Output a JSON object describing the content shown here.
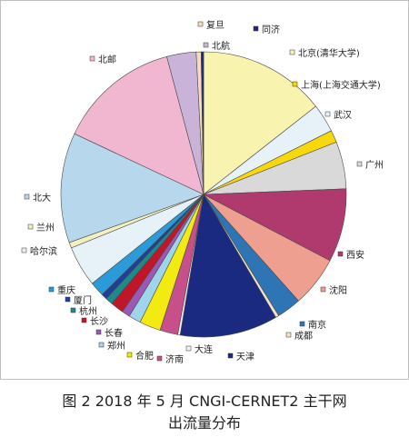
{
  "caption": {
    "line1": "图 2  2018 年 5 月 CNGI-CERNET2 主干网",
    "line2": "出流量分布"
  },
  "chart_data": {
    "type": "pie",
    "start_angle_deg": 0,
    "direction": "clockwise",
    "legend": "labels around pie",
    "slices": [
      {
        "name": "北京(清华大学)",
        "value": 15.6,
        "color": "#f8f4b0"
      },
      {
        "name": "武汉",
        "value": 3.5,
        "color": "#e6f1f8"
      },
      {
        "name": "上海(上海交通大学)",
        "value": 1.5,
        "color": "#f7d80d"
      },
      {
        "name": "广州",
        "value": 5.8,
        "color": "#d9d9d9"
      },
      {
        "name": "西安",
        "value": 9.0,
        "color": "#b03a6e"
      },
      {
        "name": "沈阳",
        "value": 6.2,
        "color": "#ef9f8f"
      },
      {
        "name": "南京",
        "value": 3.0,
        "color": "#2e75b6"
      },
      {
        "name": "成都",
        "value": 0.4,
        "color": "#f5e3c8"
      },
      {
        "name": "天津",
        "value": 12.0,
        "color": "#1a2a80"
      },
      {
        "name": "大连",
        "value": 0.3,
        "color": "#eef3f8"
      },
      {
        "name": "济南",
        "value": 2.2,
        "color": "#c8508a"
      },
      {
        "name": "合肥",
        "value": 2.6,
        "color": "#f2ea10"
      },
      {
        "name": "郑州",
        "value": 1.5,
        "color": "#9ed5ea"
      },
      {
        "name": "长春",
        "value": 1.0,
        "color": "#9b59b6"
      },
      {
        "name": "长沙",
        "value": 1.6,
        "color": "#c0162a"
      },
      {
        "name": "杭州",
        "value": 0.9,
        "color": "#1a8a8a"
      },
      {
        "name": "厦门",
        "value": 0.7,
        "color": "#1f3f99"
      },
      {
        "name": "重庆",
        "value": 1.8,
        "color": "#2a9ad8"
      },
      {
        "name": "哈尔滨",
        "value": 5.0,
        "color": "#e6f1f8"
      },
      {
        "name": "兰州",
        "value": 0.7,
        "color": "#f2f0c0"
      },
      {
        "name": "北大",
        "value": 13.5,
        "color": "#b7d7ec"
      },
      {
        "name": "北邮",
        "value": 15.0,
        "color": "#f1b6d0"
      },
      {
        "name": "北航",
        "value": 3.6,
        "color": "#c9b3d8"
      },
      {
        "name": "复旦",
        "value": 0.6,
        "color": "#f5dcc0"
      },
      {
        "name": "同济",
        "value": 0.3,
        "color": "#1a2a80"
      }
    ]
  }
}
